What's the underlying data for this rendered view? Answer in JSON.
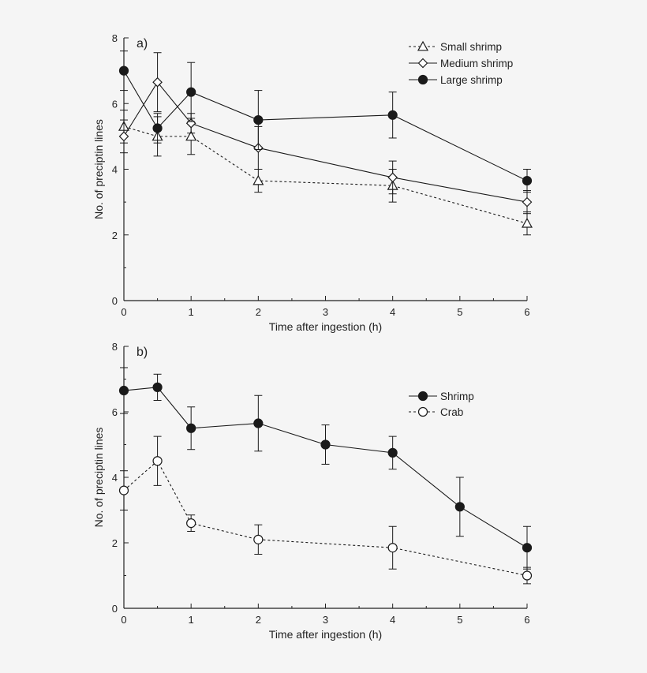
{
  "chart_data": [
    {
      "type": "line",
      "panel_label": "a)",
      "xlabel": "Time after ingestion (h)",
      "ylabel": "No. of preciptin lines",
      "xlim": [
        0,
        6
      ],
      "ylim": [
        0,
        8
      ],
      "xticks": [
        "0",
        "1",
        "2",
        "3",
        "4",
        "5",
        "6"
      ],
      "yticks": [
        "0",
        "2",
        "4",
        "6",
        "8"
      ],
      "legend_position": "top-right",
      "series": [
        {
          "name": "Small shrimp",
          "marker": "triangle-open",
          "line": "dotted",
          "x": [
            0,
            0.5,
            1,
            2,
            4,
            6
          ],
          "y": [
            5.3,
            5.0,
            5.0,
            3.65,
            3.5,
            2.35
          ],
          "err": [
            0.5,
            0.6,
            0.55,
            0.35,
            0.5,
            0.35
          ]
        },
        {
          "name": "Medium shrimp",
          "marker": "diamond-open",
          "line": "solid",
          "x": [
            0,
            0.5,
            1,
            2,
            4,
            6
          ],
          "y": [
            5.0,
            6.65,
            5.4,
            4.65,
            3.75,
            3.0
          ],
          "err": [
            0.5,
            0.9,
            0.3,
            0.65,
            0.5,
            0.35
          ]
        },
        {
          "name": "Large shrimp",
          "marker": "circle-filled",
          "line": "solid",
          "x": [
            0,
            0.5,
            1,
            2,
            4,
            6
          ],
          "y": [
            7.0,
            5.25,
            6.35,
            5.5,
            5.65,
            3.65
          ],
          "err": [
            0.6,
            0.45,
            0.9,
            0.9,
            0.7,
            0.35
          ]
        }
      ]
    },
    {
      "type": "line",
      "panel_label": "b)",
      "xlabel": "Time after ingestion (h)",
      "ylabel": "No. of preciptin lines",
      "xlim": [
        0,
        6
      ],
      "ylim": [
        0,
        8
      ],
      "xticks": [
        "0",
        "1",
        "2",
        "3",
        "4",
        "5",
        "6"
      ],
      "yticks": [
        "0",
        "2",
        "4",
        "6",
        "8"
      ],
      "legend_position": "right",
      "series": [
        {
          "name": "Shrimp",
          "marker": "circle-filled",
          "line": "solid",
          "x": [
            0,
            0.5,
            1,
            2,
            3,
            4,
            5,
            6
          ],
          "y": [
            6.65,
            6.75,
            5.5,
            5.65,
            5.0,
            4.75,
            3.1,
            1.85
          ],
          "err": [
            0.7,
            0.4,
            0.65,
            0.85,
            0.6,
            0.5,
            0.9,
            0.65
          ]
        },
        {
          "name": "Crab",
          "marker": "circle-open",
          "line": "dotted",
          "x": [
            0,
            0.5,
            1,
            2,
            4,
            6
          ],
          "y": [
            3.6,
            4.5,
            2.6,
            2.1,
            1.85,
            1.0
          ],
          "err": [
            0.6,
            0.75,
            0.25,
            0.45,
            0.65,
            0.25
          ]
        }
      ]
    }
  ]
}
